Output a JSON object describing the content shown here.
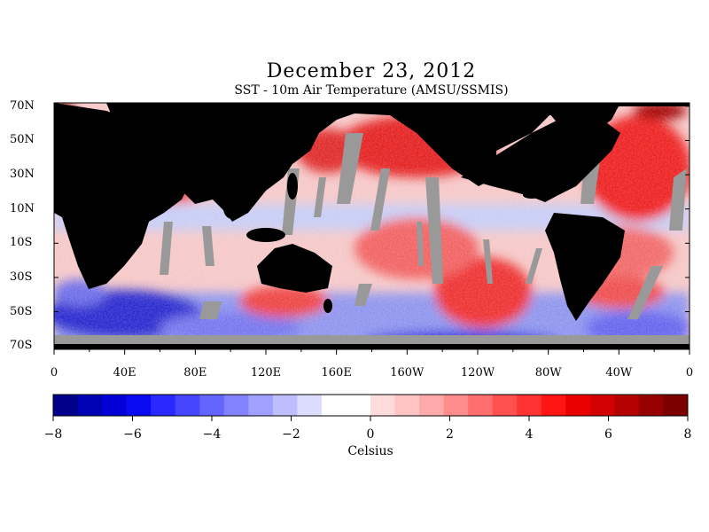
{
  "title": "December 23, 2012",
  "subtitle": "SST - 10m Air Temperature (AMSU/SSMIS)",
  "map": {
    "lat_labels": [
      "70N",
      "50N",
      "30N",
      "10N",
      "10S",
      "30S",
      "50S",
      "70S"
    ],
    "lat_values": [
      70,
      50,
      30,
      10,
      -10,
      -30,
      -50,
      -70
    ],
    "lon_labels": [
      "0",
      "40E",
      "80E",
      "120E",
      "160E",
      "160W",
      "120W",
      "80W",
      "40W",
      "0"
    ],
    "lon_values": [
      0,
      40,
      80,
      120,
      160,
      200,
      240,
      280,
      320,
      360
    ],
    "lat_range": [
      -72,
      72
    ],
    "lon_range": [
      0,
      360
    ],
    "colors": {
      "land": "#000000",
      "missing": "#999999"
    }
  },
  "colorbar": {
    "ticks": [
      "−8",
      "−6",
      "−4",
      "−2",
      "0",
      "2",
      "4",
      "6",
      "8"
    ],
    "tick_values": [
      -8,
      -6,
      -4,
      -2,
      0,
      2,
      4,
      6,
      8
    ],
    "range": [
      -8,
      8
    ],
    "units": "Celsius",
    "colors": [
      "#00008b",
      "#0000b4",
      "#0000d7",
      "#0a0af0",
      "#2828ff",
      "#4646ff",
      "#6464ff",
      "#8282ff",
      "#a0a0ff",
      "#bebeff",
      "#dcdcff",
      "#ffffff",
      "#ffffff",
      "#ffdcdc",
      "#ffc3c3",
      "#ffaaaa",
      "#ff8c8c",
      "#ff6e6e",
      "#ff5050",
      "#ff3232",
      "#ff1414",
      "#eb0000",
      "#d20000",
      "#b40000",
      "#960000",
      "#7d0000"
    ]
  }
}
